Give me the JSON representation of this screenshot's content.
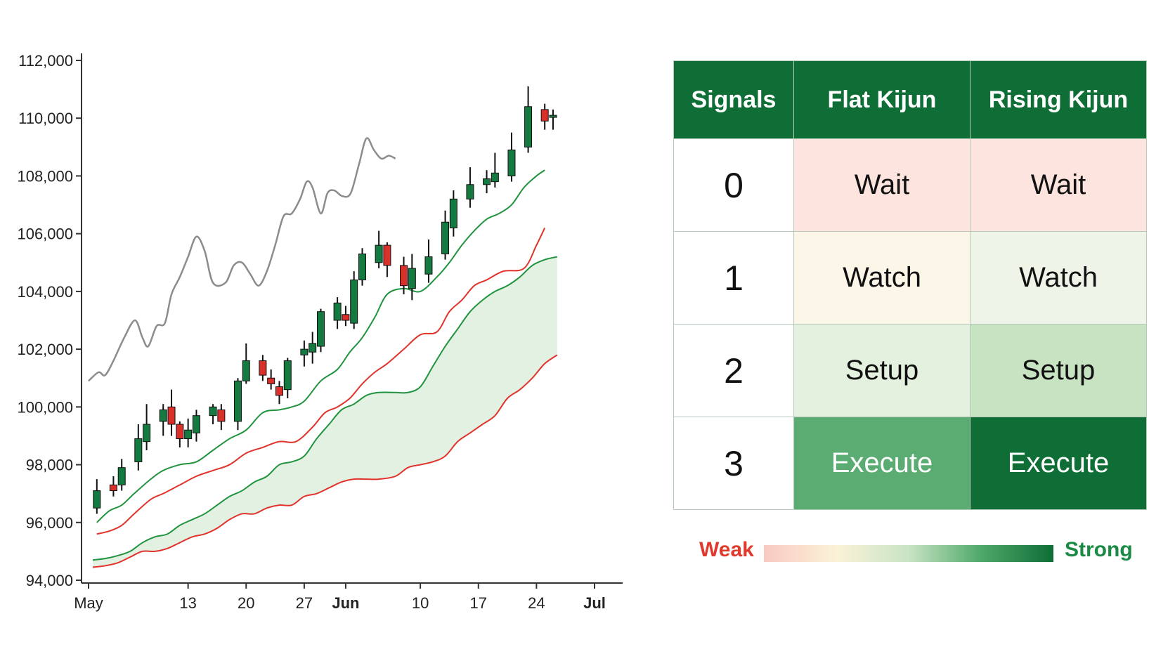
{
  "chart_data": {
    "type": "candlestick",
    "y_ticks": [
      "112,000",
      "110,000",
      "108,000",
      "106,000",
      "104,000",
      "102,000",
      "100,000",
      "98,000",
      "96,000",
      "94,000"
    ],
    "y_tick_values": [
      112000,
      110000,
      108000,
      106000,
      104000,
      102000,
      100000,
      98000,
      96000,
      94000
    ],
    "ylim": [
      94000,
      112000
    ],
    "x_ticks": [
      {
        "label": "May",
        "day": 0,
        "bold": false
      },
      {
        "label": "13",
        "day": 12,
        "bold": false
      },
      {
        "label": "20",
        "day": 19,
        "bold": false
      },
      {
        "label": "27",
        "day": 26,
        "bold": false
      },
      {
        "label": "Jun",
        "day": 31,
        "bold": true
      },
      {
        "label": "10",
        "day": 40,
        "bold": false
      },
      {
        "label": "17",
        "day": 47,
        "bold": false
      },
      {
        "label": "24",
        "day": 54,
        "bold": false
      },
      {
        "label": "Jul",
        "day": 61,
        "bold": true
      }
    ],
    "candles": [
      {
        "day": 1,
        "o": 96500,
        "c": 97100,
        "h": 97500,
        "l": 96300
      },
      {
        "day": 3,
        "o": 97300,
        "c": 97100,
        "h": 97600,
        "l": 96900
      },
      {
        "day": 4,
        "o": 97300,
        "c": 97900,
        "h": 98200,
        "l": 97100
      },
      {
        "day": 6,
        "o": 98100,
        "c": 98900,
        "h": 99400,
        "l": 97800
      },
      {
        "day": 7,
        "o": 98800,
        "c": 99400,
        "h": 100100,
        "l": 98500
      },
      {
        "day": 9,
        "o": 99500,
        "c": 99900,
        "h": 100100,
        "l": 99000
      },
      {
        "day": 10,
        "o": 100000,
        "c": 99400,
        "h": 100600,
        "l": 99000
      },
      {
        "day": 11,
        "o": 99400,
        "c": 98900,
        "h": 99500,
        "l": 98600
      },
      {
        "day": 12,
        "o": 98900,
        "c": 99200,
        "h": 99600,
        "l": 98600
      },
      {
        "day": 13,
        "o": 99100,
        "c": 99700,
        "h": 99900,
        "l": 98800
      },
      {
        "day": 15,
        "o": 99700,
        "c": 100000,
        "h": 100100,
        "l": 99400
      },
      {
        "day": 16,
        "o": 99900,
        "c": 99500,
        "h": 100100,
        "l": 99200
      },
      {
        "day": 18,
        "o": 99500,
        "c": 100900,
        "h": 101000,
        "l": 99200
      },
      {
        "day": 19,
        "o": 100900,
        "c": 101600,
        "h": 102200,
        "l": 100800
      },
      {
        "day": 21,
        "o": 101600,
        "c": 101100,
        "h": 101800,
        "l": 100900
      },
      {
        "day": 22,
        "o": 101000,
        "c": 100800,
        "h": 101300,
        "l": 100600
      },
      {
        "day": 23,
        "o": 100700,
        "c": 100400,
        "h": 100900,
        "l": 100100
      },
      {
        "day": 24,
        "o": 100600,
        "c": 101600,
        "h": 101700,
        "l": 100300
      },
      {
        "day": 26,
        "o": 101800,
        "c": 102000,
        "h": 102300,
        "l": 101400
      },
      {
        "day": 27,
        "o": 101900,
        "c": 102200,
        "h": 102600,
        "l": 101500
      },
      {
        "day": 28,
        "o": 102100,
        "c": 103300,
        "h": 103400,
        "l": 101900
      },
      {
        "day": 30,
        "o": 103000,
        "c": 103600,
        "h": 103800,
        "l": 102700
      },
      {
        "day": 31,
        "o": 103200,
        "c": 103000,
        "h": 103500,
        "l": 102800
      },
      {
        "day": 32,
        "o": 102900,
        "c": 104400,
        "h": 104700,
        "l": 102700
      },
      {
        "day": 33,
        "o": 104400,
        "c": 105300,
        "h": 105500,
        "l": 104200
      },
      {
        "day": 35,
        "o": 105000,
        "c": 105600,
        "h": 106100,
        "l": 104800
      },
      {
        "day": 36,
        "o": 105600,
        "c": 104900,
        "h": 105700,
        "l": 104500
      },
      {
        "day": 38,
        "o": 104900,
        "c": 104200,
        "h": 105200,
        "l": 103900
      },
      {
        "day": 39,
        "o": 104100,
        "c": 104800,
        "h": 105300,
        "l": 103700
      },
      {
        "day": 41,
        "o": 104600,
        "c": 105200,
        "h": 105800,
        "l": 104300
      },
      {
        "day": 43,
        "o": 105300,
        "c": 106400,
        "h": 106800,
        "l": 105100
      },
      {
        "day": 44,
        "o": 106200,
        "c": 107200,
        "h": 107500,
        "l": 105900
      },
      {
        "day": 46,
        "o": 107200,
        "c": 107700,
        "h": 108300,
        "l": 106900
      },
      {
        "day": 48,
        "o": 107700,
        "c": 107900,
        "h": 108200,
        "l": 107400
      },
      {
        "day": 49,
        "o": 107800,
        "c": 108100,
        "h": 108800,
        "l": 107600
      },
      {
        "day": 51,
        "o": 108000,
        "c": 108900,
        "h": 109500,
        "l": 107800
      },
      {
        "day": 53,
        "o": 109000,
        "c": 110400,
        "h": 111100,
        "l": 108800
      },
      {
        "day": 55,
        "o": 110300,
        "c": 109900,
        "h": 110500,
        "l": 109600
      },
      {
        "day": 56,
        "o": 110100,
        "c": 110100,
        "h": 110300,
        "l": 109600
      }
    ],
    "lagging_line": [
      [
        0,
        100900
      ],
      [
        1.2,
        101200
      ],
      [
        2,
        101100
      ],
      [
        3,
        101600
      ],
      [
        4.3,
        102400
      ],
      [
        5.6,
        103000
      ],
      [
        6.5,
        102400
      ],
      [
        7.2,
        102100
      ],
      [
        8.2,
        102800
      ],
      [
        9.2,
        102900
      ],
      [
        10,
        103900
      ],
      [
        11,
        104500
      ],
      [
        12,
        105200
      ],
      [
        13,
        105900
      ],
      [
        14,
        105400
      ],
      [
        15,
        104300
      ],
      [
        16.5,
        104300
      ],
      [
        17.5,
        104900
      ],
      [
        18.5,
        105000
      ],
      [
        19.5,
        104600
      ],
      [
        20.5,
        104200
      ],
      [
        21.5,
        104700
      ],
      [
        22.5,
        105600
      ],
      [
        23.5,
        106600
      ],
      [
        24.5,
        106700
      ],
      [
        25.5,
        107200
      ],
      [
        26.3,
        107800
      ],
      [
        27,
        107600
      ],
      [
        28,
        106700
      ],
      [
        28.8,
        107400
      ],
      [
        29.6,
        107500
      ],
      [
        30.6,
        107300
      ],
      [
        31.6,
        107400
      ],
      [
        32.6,
        108400
      ],
      [
        33.5,
        109300
      ],
      [
        34.4,
        108900
      ],
      [
        35.3,
        108600
      ],
      [
        36.2,
        108700
      ],
      [
        37,
        108600
      ]
    ],
    "kijun_line": [
      [
        1,
        96000
      ],
      [
        2.5,
        96400
      ],
      [
        4,
        96600
      ],
      [
        5.5,
        97000
      ],
      [
        7.5,
        97500
      ],
      [
        9,
        97800
      ],
      [
        11,
        98000
      ],
      [
        13,
        98100
      ],
      [
        15,
        98500
      ],
      [
        17,
        98900
      ],
      [
        19,
        99200
      ],
      [
        21,
        99800
      ],
      [
        23,
        99900
      ],
      [
        24.5,
        100000
      ],
      [
        26,
        100200
      ],
      [
        28,
        100900
      ],
      [
        30,
        101300
      ],
      [
        31.5,
        101900
      ],
      [
        33,
        102400
      ],
      [
        34.5,
        103100
      ],
      [
        36,
        103900
      ],
      [
        38,
        104100
      ],
      [
        40,
        104000
      ],
      [
        42,
        104500
      ],
      [
        43.5,
        105000
      ],
      [
        45,
        105600
      ],
      [
        46.5,
        106100
      ],
      [
        48,
        106500
      ],
      [
        49.5,
        106700
      ],
      [
        51,
        107000
      ],
      [
        52.5,
        107600
      ],
      [
        54,
        108000
      ],
      [
        55,
        108200
      ]
    ],
    "tenkan_line": [
      [
        1,
        95600
      ],
      [
        2.5,
        95700
      ],
      [
        4,
        95900
      ],
      [
        5.5,
        96300
      ],
      [
        7.5,
        96800
      ],
      [
        9,
        97000
      ],
      [
        11,
        97300
      ],
      [
        13,
        97600
      ],
      [
        15,
        97800
      ],
      [
        17,
        98000
      ],
      [
        19,
        98400
      ],
      [
        21,
        98600
      ],
      [
        23,
        98800
      ],
      [
        25,
        98800
      ],
      [
        27,
        99300
      ],
      [
        28.5,
        99800
      ],
      [
        30,
        100000
      ],
      [
        31.5,
        100300
      ],
      [
        33,
        100800
      ],
      [
        34.5,
        101200
      ],
      [
        36,
        101500
      ],
      [
        38,
        102000
      ],
      [
        40,
        102500
      ],
      [
        42,
        102600
      ],
      [
        43.5,
        103300
      ],
      [
        45,
        103700
      ],
      [
        46.5,
        104200
      ],
      [
        48,
        104400
      ],
      [
        50,
        104700
      ],
      [
        52.5,
        104800
      ],
      [
        54,
        105600
      ],
      [
        55,
        106200
      ]
    ],
    "span_a": [
      [
        0.5,
        94700
      ],
      [
        2,
        94750
      ],
      [
        3.5,
        94850
      ],
      [
        5,
        95000
      ],
      [
        6.5,
        95300
      ],
      [
        8,
        95500
      ],
      [
        9.5,
        95600
      ],
      [
        11,
        95900
      ],
      [
        12.5,
        96100
      ],
      [
        14,
        96300
      ],
      [
        15.5,
        96600
      ],
      [
        17,
        96900
      ],
      [
        18.5,
        97100
      ],
      [
        20,
        97400
      ],
      [
        21.5,
        97600
      ],
      [
        23,
        98000
      ],
      [
        24.5,
        98100
      ],
      [
        26,
        98300
      ],
      [
        27.5,
        98900
      ],
      [
        29,
        99400
      ],
      [
        30.5,
        99900
      ],
      [
        32,
        100100
      ],
      [
        33.5,
        100400
      ],
      [
        35,
        100500
      ],
      [
        37,
        100500
      ],
      [
        38.5,
        100500
      ],
      [
        40,
        100700
      ],
      [
        41.5,
        101400
      ],
      [
        43,
        102100
      ],
      [
        44.5,
        102700
      ],
      [
        46,
        103300
      ],
      [
        47.5,
        103700
      ],
      [
        49,
        104000
      ],
      [
        50.5,
        104200
      ],
      [
        52,
        104500
      ],
      [
        53.5,
        104900
      ],
      [
        55,
        105100
      ],
      [
        56.5,
        105200
      ]
    ],
    "span_b": [
      [
        0.5,
        94450
      ],
      [
        2,
        94500
      ],
      [
        3.5,
        94600
      ],
      [
        5,
        94800
      ],
      [
        6.5,
        95000
      ],
      [
        8,
        95000
      ],
      [
        9.5,
        95100
      ],
      [
        11,
        95300
      ],
      [
        12.5,
        95500
      ],
      [
        14,
        95600
      ],
      [
        15.5,
        95800
      ],
      [
        17,
        96100
      ],
      [
        18.5,
        96300
      ],
      [
        20,
        96300
      ],
      [
        21.5,
        96500
      ],
      [
        23,
        96600
      ],
      [
        24.5,
        96600
      ],
      [
        26,
        96900
      ],
      [
        27.5,
        97000
      ],
      [
        29,
        97200
      ],
      [
        30.5,
        97400
      ],
      [
        32,
        97500
      ],
      [
        33.5,
        97500
      ],
      [
        35,
        97500
      ],
      [
        37,
        97600
      ],
      [
        38.5,
        97900
      ],
      [
        40,
        98000
      ],
      [
        41.5,
        98100
      ],
      [
        43,
        98300
      ],
      [
        44.5,
        98800
      ],
      [
        46,
        99100
      ],
      [
        47.5,
        99400
      ],
      [
        49,
        99700
      ],
      [
        50.5,
        100300
      ],
      [
        52,
        100600
      ],
      [
        53.5,
        101000
      ],
      [
        55,
        101500
      ],
      [
        56.5,
        101800
      ]
    ]
  },
  "table": {
    "headers": [
      "Signals",
      "Flat Kijun",
      "Rising Kijun"
    ],
    "rows": [
      {
        "signal": "0",
        "flat": "Wait",
        "rising": "Wait"
      },
      {
        "signal": "1",
        "flat": "Watch",
        "rising": "Watch"
      },
      {
        "signal": "2",
        "flat": "Setup",
        "rising": "Setup"
      },
      {
        "signal": "3",
        "flat": "Execute",
        "rising": "Execute"
      }
    ],
    "cell_colors": [
      [
        "#fde4de",
        "#fde4de"
      ],
      [
        "#fbf6e8",
        "#eef5e8"
      ],
      [
        "#e5f1df",
        "#c7e3c2"
      ],
      [
        "#5aac72",
        "#0e6e36"
      ]
    ],
    "cell_text_colors": [
      [
        "#111111",
        "#111111"
      ],
      [
        "#111111",
        "#111111"
      ],
      [
        "#111111",
        "#111111"
      ],
      [
        "#ffffff",
        "#ffffff"
      ]
    ]
  },
  "legend": {
    "weak": "Weak",
    "strong": "Strong"
  },
  "colors": {
    "up": "#157a40",
    "down": "#d9302a",
    "kijun": "#20933e",
    "tenkan": "#e0332c",
    "lagging": "#8c8c8c",
    "cloud_bull": "#e3f1e3",
    "cloud_bear": "#fde3de",
    "axis": "#333333"
  }
}
